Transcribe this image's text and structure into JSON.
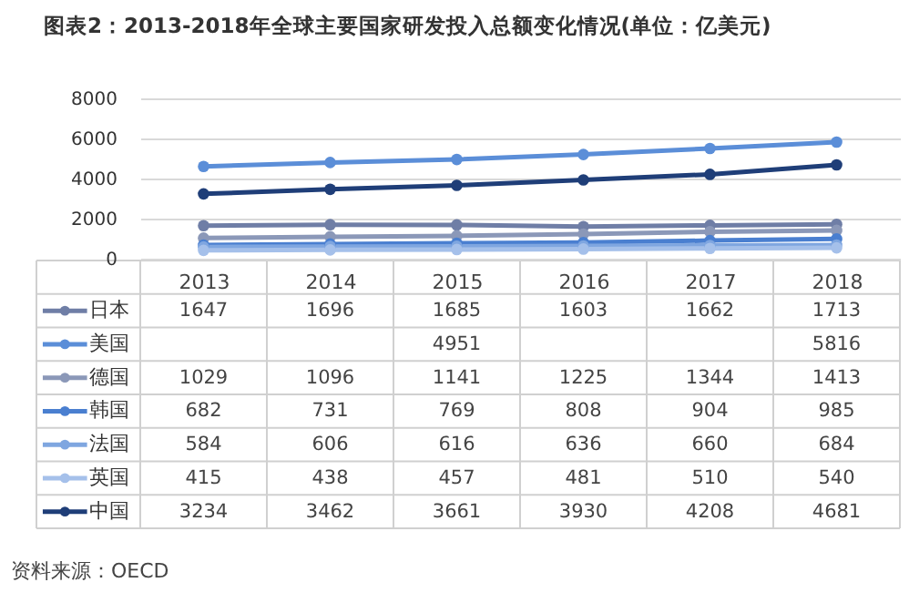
{
  "chart_data": {
    "type": "line",
    "title": "图表2：2013-2018年全球主要国家研发投入总额变化情况(单位：亿美元)",
    "categories": [
      "2013",
      "2014",
      "2015",
      "2016",
      "2017",
      "2018"
    ],
    "series": [
      {
        "name": "日本",
        "color": "#6f7ea6",
        "values": [
          1647,
          1696,
          1685,
          1603,
          1662,
          1713
        ],
        "value_labels": [
          "1647",
          "1696",
          "1685",
          "1603",
          "1662",
          "1713"
        ]
      },
      {
        "name": "美国",
        "color": "#5b8ed8",
        "values": [
          4600,
          4800,
          4951,
          5200,
          5500,
          5816
        ],
        "value_labels": [
          null,
          null,
          "4951",
          null,
          null,
          "5816"
        ]
      },
      {
        "name": "德国",
        "color": "#8b98b8",
        "values": [
          1029,
          1096,
          1141,
          1225,
          1344,
          1413
        ],
        "value_labels": [
          "1029",
          "1096",
          "1141",
          "1225",
          "1344",
          "1413"
        ]
      },
      {
        "name": "韩国",
        "color": "#4a7fd0",
        "values": [
          682,
          731,
          769,
          808,
          904,
          985
        ],
        "value_labels": [
          "682",
          "731",
          "769",
          "808",
          "904",
          "985"
        ]
      },
      {
        "name": "法国",
        "color": "#7fa6e0",
        "values": [
          584,
          606,
          616,
          636,
          660,
          684
        ],
        "value_labels": [
          "584",
          "606",
          "616",
          "636",
          "660",
          "684"
        ]
      },
      {
        "name": "英国",
        "color": "#a5c0ea",
        "values": [
          415,
          438,
          457,
          481,
          510,
          540
        ],
        "value_labels": [
          "415",
          "438",
          "457",
          "481",
          "510",
          "540"
        ]
      },
      {
        "name": "中国",
        "color": "#1f3e78",
        "values": [
          3234,
          3462,
          3661,
          3930,
          4208,
          4681
        ],
        "value_labels": [
          "3234",
          "3462",
          "3661",
          "3930",
          "4208",
          "4681"
        ]
      }
    ],
    "ylim": [
      0,
      8000
    ],
    "yticks": [
      0,
      2000,
      4000,
      6000,
      8000
    ],
    "grid": "y",
    "marker": "circle",
    "legend": "bottom",
    "annotations": [
      "资料来源：OECD"
    ]
  }
}
